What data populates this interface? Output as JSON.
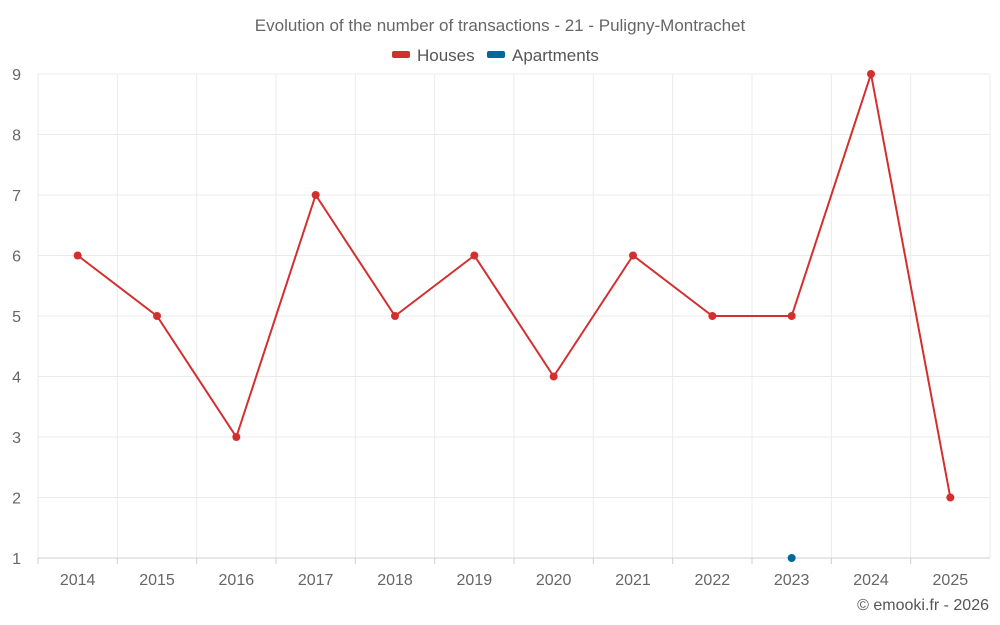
{
  "chart_data": {
    "type": "line",
    "title": "Evolution of the number of transactions - 21 - Puligny-Montrachet",
    "x": [
      "2014",
      "2015",
      "2016",
      "2017",
      "2018",
      "2019",
      "2020",
      "2021",
      "2022",
      "2023",
      "2024",
      "2025"
    ],
    "yticks": [
      "1",
      "2",
      "3",
      "4",
      "5",
      "6",
      "7",
      "8",
      "9"
    ],
    "ylim": [
      1,
      9
    ],
    "grid": true,
    "legend_position": "top-center",
    "series": [
      {
        "name": "Houses",
        "color": "#d32f2f",
        "values": [
          6,
          5,
          3,
          7,
          5,
          6,
          4,
          6,
          5,
          5,
          9,
          2
        ]
      },
      {
        "name": "Apartments",
        "color": "#00689c",
        "values": [
          null,
          null,
          null,
          null,
          null,
          null,
          null,
          null,
          null,
          1,
          null,
          null
        ]
      }
    ]
  },
  "credit": "© emooki.fr - 2026"
}
